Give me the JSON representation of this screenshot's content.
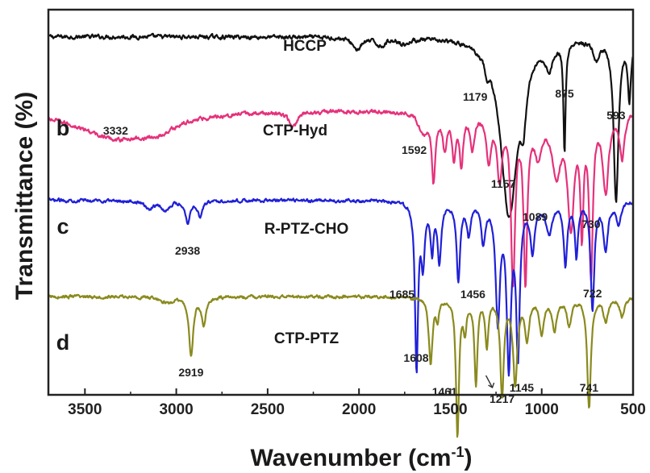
{
  "chart_data": {
    "type": "line",
    "xlabel": "Wavenumber (cm",
    "xlabel_sup": "-1",
    "xlabel_end": ")",
    "ylabel": "Transmittance (%)",
    "xlim": [
      3700,
      500
    ],
    "x_reversed": true,
    "x_ticks": [
      "3500",
      "3000",
      "2500",
      "2000",
      "1500",
      "1000",
      "500"
    ],
    "y_ticks": [],
    "grid": false,
    "legend": "none",
    "series": [
      {
        "name": "HCCP",
        "letter": "",
        "color": "#111111",
        "offset": 0.0,
        "baseline": 0.93,
        "noise": 0.01,
        "bands": [
          [
            2010,
            0.03,
            30
          ],
          [
            1880,
            0.02,
            30
          ],
          [
            1750,
            0.015,
            30
          ],
          [
            1300,
            0.04,
            10
          ],
          [
            1179,
            0.46,
            55
          ],
          [
            1100,
            0.12,
            20
          ],
          [
            960,
            0.06,
            25
          ],
          [
            875,
            0.28,
            7
          ],
          [
            700,
            0.05,
            20
          ],
          [
            593,
            0.42,
            16
          ],
          [
            520,
            0.15,
            10
          ]
        ],
        "peaks": [
          {
            "label": "1179",
            "x": 1179
          },
          {
            "label": "875",
            "x": 875
          },
          {
            "label": "593",
            "x": 593
          }
        ]
      },
      {
        "name": "CTP-Hyd",
        "letter": "b",
        "color": "#e5327b",
        "offset": 0.0,
        "baseline": 0.74,
        "noise": 0.01,
        "bands": [
          [
            3332,
            0.07,
            260
          ],
          [
            3100,
            0.03,
            120
          ],
          [
            2360,
            0.04,
            25
          ],
          [
            1650,
            0.05,
            30
          ],
          [
            1592,
            0.17,
            12
          ],
          [
            1530,
            0.09,
            14
          ],
          [
            1480,
            0.11,
            12
          ],
          [
            1440,
            0.13,
            12
          ],
          [
            1380,
            0.09,
            14
          ],
          [
            1290,
            0.12,
            16
          ],
          [
            1230,
            0.16,
            16
          ],
          [
            1157,
            0.43,
            14
          ],
          [
            1089,
            0.42,
            12
          ],
          [
            1020,
            0.1,
            25
          ],
          [
            920,
            0.15,
            30
          ],
          [
            840,
            0.28,
            22
          ],
          [
            780,
            0.28,
            10
          ],
          [
            730,
            0.4,
            12
          ],
          [
            650,
            0.2,
            20
          ],
          [
            560,
            0.12,
            15
          ]
        ],
        "peaks": [
          {
            "label": "3332",
            "x": 3332
          },
          {
            "label": "1592",
            "x": 1592
          },
          {
            "label": "1157",
            "x": 1157
          },
          {
            "label": "1089",
            "x": 1089
          },
          {
            "label": "730",
            "x": 730
          }
        ]
      },
      {
        "name": "R-PTZ-CHO",
        "letter": "c",
        "color": "#2020d8",
        "offset": 0.0,
        "baseline": 0.505,
        "noise": 0.008,
        "bands": [
          [
            3150,
            0.02,
            30
          ],
          [
            3060,
            0.025,
            25
          ],
          [
            2938,
            0.055,
            15
          ],
          [
            2870,
            0.04,
            15
          ],
          [
            1685,
            0.43,
            10
          ],
          [
            1650,
            0.15,
            12
          ],
          [
            1600,
            0.12,
            10
          ],
          [
            1560,
            0.15,
            12
          ],
          [
            1456,
            0.2,
            12
          ],
          [
            1400,
            0.08,
            12
          ],
          [
            1320,
            0.1,
            14
          ],
          [
            1240,
            0.3,
            14
          ],
          [
            1180,
            0.41,
            14
          ],
          [
            1130,
            0.38,
            12
          ],
          [
            1050,
            0.12,
            15
          ],
          [
            960,
            0.08,
            20
          ],
          [
            870,
            0.16,
            12
          ],
          [
            810,
            0.14,
            10
          ],
          [
            722,
            0.28,
            12
          ],
          [
            650,
            0.12,
            15
          ],
          [
            580,
            0.06,
            15
          ]
        ],
        "peaks": [
          {
            "label": "2938",
            "x": 2938
          },
          {
            "label": "1685",
            "x": 1685
          },
          {
            "label": "1456",
            "x": 1456
          },
          {
            "label": "722",
            "x": 722
          }
        ]
      },
      {
        "name": "CTP-PTZ",
        "letter": "d",
        "color": "#8a8a1e",
        "offset": 0.0,
        "baseline": 0.255,
        "noise": 0.008,
        "bands": [
          [
            3050,
            0.015,
            40
          ],
          [
            2919,
            0.15,
            14
          ],
          [
            2850,
            0.07,
            14
          ],
          [
            1608,
            0.17,
            12
          ],
          [
            1570,
            0.05,
            10
          ],
          [
            1461,
            0.36,
            10
          ],
          [
            1420,
            0.08,
            10
          ],
          [
            1360,
            0.22,
            10
          ],
          [
            1300,
            0.12,
            10
          ],
          [
            1217,
            0.25,
            12
          ],
          [
            1145,
            0.22,
            14
          ],
          [
            1080,
            0.1,
            14
          ],
          [
            1000,
            0.09,
            15
          ],
          [
            930,
            0.08,
            15
          ],
          [
            850,
            0.07,
            15
          ],
          [
            741,
            0.29,
            12
          ],
          [
            650,
            0.06,
            15
          ],
          [
            560,
            0.05,
            15
          ]
        ],
        "peaks": [
          {
            "label": "2919",
            "x": 2919
          },
          {
            "label": "1608",
            "x": 1608
          },
          {
            "label": "1461",
            "x": 1461
          },
          {
            "label": "1217",
            "x": 1217
          },
          {
            "label": "1145",
            "x": 1145
          },
          {
            "label": "741",
            "x": 741
          }
        ]
      }
    ]
  }
}
